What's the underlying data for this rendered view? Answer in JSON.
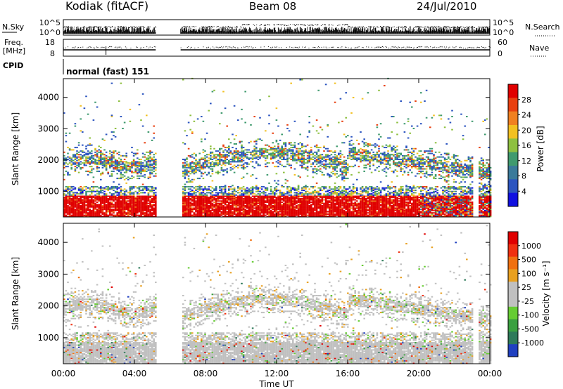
{
  "header": {
    "station": "Kodiak (fitACF)",
    "beam": "Beam 08",
    "date": "24/Jul/2010"
  },
  "top_panels": {
    "nsky": {
      "label": "N.Sky",
      "ticks": [
        "10^5",
        "10^0"
      ]
    },
    "nsearch": {
      "label": "N.Search",
      "ticks": [
        "10^5",
        "10^0"
      ]
    },
    "freq": {
      "label1": "Freq.",
      "label2": "[MHz]",
      "ticks": [
        "18",
        "8"
      ]
    },
    "nave": {
      "label": "Nave",
      "ticks": [
        "60",
        "0"
      ]
    },
    "cpid": {
      "label": "CPID",
      "value": "normal (fast) 151"
    }
  },
  "chart_data": [
    {
      "type": "heatmap",
      "name": "power",
      "ylabel": "Slant Range [km]",
      "xlabel": "Time UT",
      "xticks": [
        "00:00",
        "04:00",
        "08:00",
        "12:00",
        "16:00",
        "20:00",
        "00:00"
      ],
      "yticks": [
        "1000",
        "2000",
        "3000",
        "4000"
      ],
      "ylim": [
        180,
        4600
      ],
      "xlim_hours": [
        0,
        24
      ],
      "data_gaps_hours": [
        [
          5.2,
          6.6
        ],
        [
          23.0,
          23.3
        ]
      ],
      "colorbar": {
        "label": "Power [dB]",
        "ticks": [
          "4",
          "8",
          "12",
          "16",
          "20",
          "24",
          "28"
        ],
        "colors": [
          "#1010e0",
          "#2c55c0",
          "#3a7a9a",
          "#3f9a6e",
          "#8ec040",
          "#f2c020",
          "#f08020",
          "#e84010",
          "#e00000"
        ]
      }
    },
    {
      "type": "heatmap",
      "name": "velocity",
      "ylabel": "Slant Range [km]",
      "xlabel": "Time UT",
      "xticks": [
        "00:00",
        "04:00",
        "08:00",
        "12:00",
        "16:00",
        "20:00",
        "00:00"
      ],
      "yticks": [
        "1000",
        "2000",
        "3000",
        "4000"
      ],
      "ylim": [
        180,
        4600
      ],
      "xlim_hours": [
        0,
        24
      ],
      "colorbar": {
        "label": "Velocity [m s⁻¹]",
        "ticks": [
          "1000",
          "500",
          "100",
          "25",
          "-25",
          "-100",
          "-500",
          "-1000"
        ],
        "colors": [
          "#2040c0",
          "#2e7a5a",
          "#3aa040",
          "#66cc33",
          "#c0c0c0",
          "#c0c0c0",
          "#e8a020",
          "#f07010",
          "#f03010",
          "#e00000"
        ]
      }
    }
  ]
}
